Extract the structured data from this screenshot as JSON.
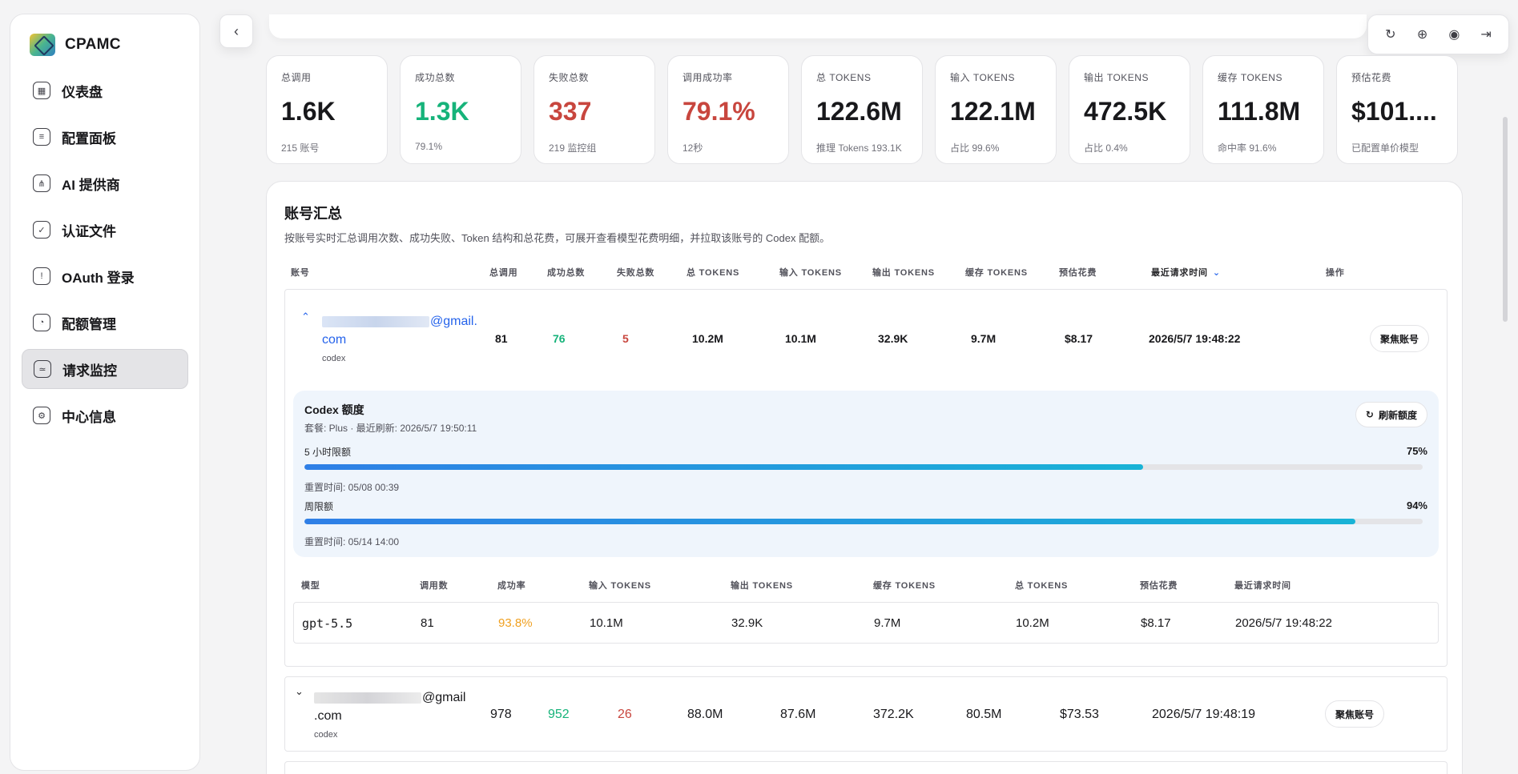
{
  "brand": {
    "name": "CPAMC"
  },
  "sidebar": {
    "items": [
      {
        "label": "仪表盘",
        "icon": "dashboard-icon",
        "glyph": "▦"
      },
      {
        "label": "配置面板",
        "icon": "sliders-icon",
        "glyph": "≡"
      },
      {
        "label": "AI 提供商",
        "icon": "nodes-icon",
        "glyph": "⋔"
      },
      {
        "label": "认证文件",
        "icon": "file-check-icon",
        "glyph": "✓"
      },
      {
        "label": "OAuth 登录",
        "icon": "shield-icon",
        "glyph": "!"
      },
      {
        "label": "配额管理",
        "icon": "pie-chart-icon",
        "glyph": "◔"
      },
      {
        "label": "请求监控",
        "icon": "monitor-icon",
        "glyph": "≃"
      },
      {
        "label": "中心信息",
        "icon": "gear-icon",
        "glyph": "⚙"
      }
    ],
    "active_index": 6
  },
  "top_actions": [
    {
      "icon": "refresh-icon",
      "glyph": "↻"
    },
    {
      "icon": "globe-icon",
      "glyph": "⊕"
    },
    {
      "icon": "theme-icon",
      "glyph": "◉"
    },
    {
      "icon": "logout-icon",
      "glyph": "⇥"
    }
  ],
  "stats": [
    {
      "label": "总调用",
      "value": "1.6K",
      "sub": "215 账号",
      "tone": ""
    },
    {
      "label": "成功总数",
      "value": "1.3K",
      "sub": "79.1%",
      "tone": "green"
    },
    {
      "label": "失败总数",
      "value": "337",
      "sub": "219 监控组",
      "tone": "red"
    },
    {
      "label": "调用成功率",
      "value": "79.1%",
      "sub": "12秒",
      "tone": "red"
    },
    {
      "label": "总 TOKENS",
      "value": "122.6M",
      "sub": "推理 Tokens 193.1K",
      "tone": ""
    },
    {
      "label": "输入 TOKENS",
      "value": "122.1M",
      "sub": "占比 99.6%",
      "tone": ""
    },
    {
      "label": "输出 TOKENS",
      "value": "472.5K",
      "sub": "占比 0.4%",
      "tone": ""
    },
    {
      "label": "缓存 TOKENS",
      "value": "111.8M",
      "sub": "命中率 91.6%",
      "tone": ""
    },
    {
      "label": "预估花费",
      "value": "$101....",
      "sub": "已配置单价模型",
      "tone": ""
    }
  ],
  "summary": {
    "title": "账号汇总",
    "description": "按账号实时汇总调用次数、成功失败、Token 结构和总花费，可展开查看模型花费明细，并拉取该账号的 Codex 配额。",
    "columns": [
      "账号",
      "总调用",
      "成功总数",
      "失败总数",
      "总 TOKENS",
      "输入 TOKENS",
      "输出 TOKENS",
      "缓存 TOKENS",
      "预估花费",
      "最近请求时间",
      "操作"
    ]
  },
  "accounts": [
    {
      "email_visible": "@gmail.",
      "email_line2": "com",
      "tag": "codex",
      "total": "81",
      "success": "76",
      "fail": "5",
      "total_tokens": "10.2M",
      "input_tokens": "10.1M",
      "output_tokens": "32.9K",
      "cache_tokens": "9.7M",
      "cost": "$8.17",
      "last_request": "2026/5/7 19:48:22",
      "action": "聚焦账号",
      "expanded": true
    },
    {
      "email_visible": "@gmail",
      "email_line2": ".com",
      "tag": "codex",
      "total": "978",
      "success": "952",
      "fail": "26",
      "total_tokens": "88.0M",
      "input_tokens": "87.6M",
      "output_tokens": "372.2K",
      "cache_tokens": "80.5M",
      "cost": "$73.53",
      "last_request": "2026/5/7 19:48:19",
      "action": "聚焦账号",
      "expanded": false
    }
  ],
  "quota": {
    "title": "Codex 额度",
    "meta": "套餐: Plus · 最近刷新: 2026/5/7 19:50:11",
    "refresh_label": "刷新额度",
    "limits": [
      {
        "label": "5 小时限额",
        "percent_label": "75%",
        "percent": 75,
        "reset": "重置时间: 05/08 00:39"
      },
      {
        "label": "周限额",
        "percent_label": "94%",
        "percent": 94,
        "reset": "重置时间: 05/14 14:00"
      }
    ]
  },
  "models": {
    "columns": [
      "模型",
      "调用数",
      "成功率",
      "输入 TOKENS",
      "输出 TOKENS",
      "缓存 TOKENS",
      "总 TOKENS",
      "预估花费",
      "最近请求时间"
    ],
    "rows": [
      {
        "model": "gpt-5.5",
        "calls": "81",
        "success_rate": "93.8%",
        "input": "10.1M",
        "output": "32.9K",
        "cache": "9.7M",
        "total": "10.2M",
        "cost": "$8.17",
        "last": "2026/5/7 19:48:22"
      }
    ]
  },
  "colors": {
    "success": "#16b37a",
    "fail": "#c8463e",
    "warn": "#f0a020",
    "link": "#2563eb"
  }
}
